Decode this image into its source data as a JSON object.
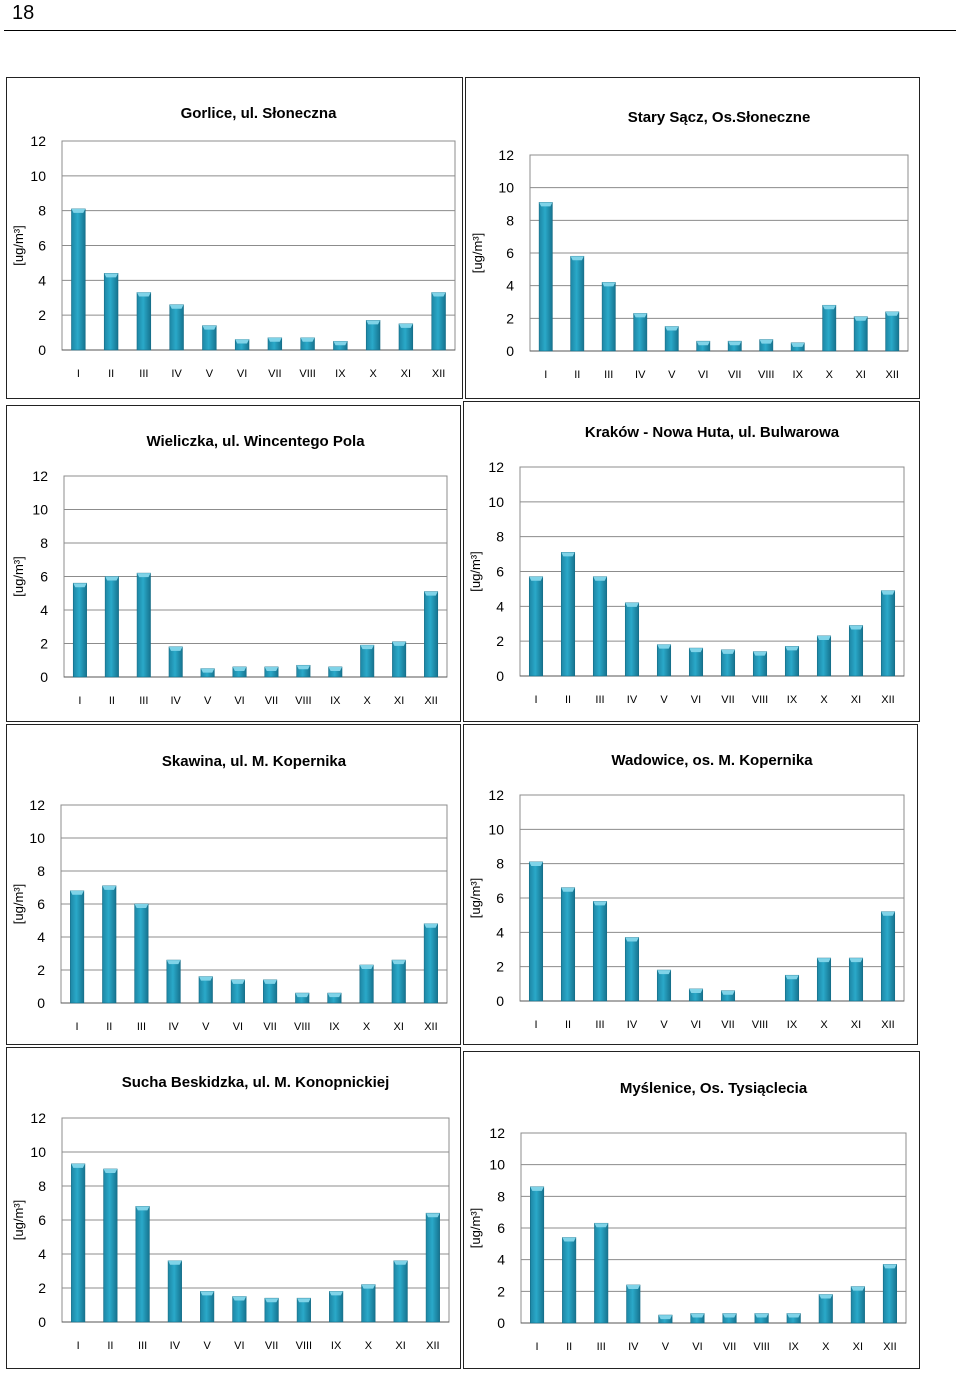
{
  "page": {
    "number": "18"
  },
  "chart_data": [
    {
      "type": "bar",
      "title": "Gorlice, ul. Słoneczna",
      "ylabel": "[ug/m³]",
      "ylim": [
        0,
        12
      ],
      "yticks": [
        "0",
        "2",
        "4",
        "6",
        "8",
        "10",
        "12"
      ],
      "categories": [
        "I",
        "II",
        "III",
        "IV",
        "V",
        "VI",
        "VII",
        "VIII",
        "IX",
        "X",
        "XI",
        "XII"
      ],
      "values": [
        8.1,
        4.4,
        3.3,
        2.6,
        1.4,
        0.6,
        0.7,
        0.7,
        0.5,
        1.7,
        1.5,
        3.3
      ],
      "grid": true,
      "legend": "none",
      "color": "#2aa9c9"
    },
    {
      "type": "bar",
      "title": "Stary Sącz, Os.Słoneczne",
      "ylabel": "[ug/m³]",
      "ylim": [
        0,
        12
      ],
      "yticks": [
        "0",
        "2",
        "4",
        "6",
        "8",
        "10",
        "12"
      ],
      "categories": [
        "I",
        "II",
        "III",
        "IV",
        "V",
        "VI",
        "VII",
        "VIII",
        "IX",
        "X",
        "XI",
        "XII"
      ],
      "values": [
        9.1,
        5.8,
        4.2,
        2.3,
        1.5,
        0.6,
        0.6,
        0.7,
        0.5,
        2.8,
        2.1,
        2.4
      ],
      "grid": true,
      "legend": "none",
      "color": "#2aa9c9"
    },
    {
      "type": "bar",
      "title": "Wieliczka, ul. Wincentego Pola",
      "ylabel": "[ug/m³]",
      "ylim": [
        0,
        12
      ],
      "yticks": [
        "0",
        "2",
        "4",
        "6",
        "8",
        "10",
        "12"
      ],
      "categories": [
        "I",
        "II",
        "III",
        "IV",
        "V",
        "VI",
        "VII",
        "VIII",
        "IX",
        "X",
        "XI",
        "XII"
      ],
      "values": [
        5.6,
        6.0,
        6.2,
        1.8,
        0.5,
        0.6,
        0.6,
        0.7,
        0.6,
        1.9,
        2.1,
        5.1
      ],
      "grid": true,
      "legend": "none",
      "color": "#2aa9c9"
    },
    {
      "type": "bar",
      "title": "Kraków - Nowa Huta, ul. Bulwarowa",
      "ylabel": "[ug/m³]",
      "ylim": [
        0,
        12
      ],
      "yticks": [
        "0",
        "2",
        "4",
        "6",
        "8",
        "10",
        "12"
      ],
      "categories": [
        "I",
        "II",
        "III",
        "IV",
        "V",
        "VI",
        "VII",
        "VIII",
        "IX",
        "X",
        "XI",
        "XII"
      ],
      "values": [
        5.7,
        7.1,
        5.7,
        4.2,
        1.8,
        1.6,
        1.5,
        1.4,
        1.7,
        2.3,
        2.9,
        4.9
      ],
      "grid": true,
      "legend": "none",
      "color": "#2aa9c9"
    },
    {
      "type": "bar",
      "title": "Skawina, ul. M. Kopernika",
      "ylabel": "[ug/m³]",
      "ylim": [
        0,
        12
      ],
      "yticks": [
        "0",
        "2",
        "4",
        "6",
        "8",
        "10",
        "12"
      ],
      "categories": [
        "I",
        "II",
        "III",
        "IV",
        "V",
        "VI",
        "VII",
        "VIII",
        "IX",
        "X",
        "XI",
        "XII"
      ],
      "values": [
        6.8,
        7.1,
        6.0,
        2.6,
        1.6,
        1.4,
        1.4,
        0.6,
        0.6,
        2.3,
        2.6,
        4.8
      ],
      "grid": true,
      "legend": "none",
      "color": "#2aa9c9"
    },
    {
      "type": "bar",
      "title": "Wadowice, os. M. Kopernika",
      "ylabel": "[ug/m³]",
      "ylim": [
        0,
        12
      ],
      "yticks": [
        "0",
        "2",
        "4",
        "6",
        "8",
        "10",
        "12"
      ],
      "categories": [
        "I",
        "II",
        "III",
        "IV",
        "V",
        "VI",
        "VII",
        "VIII",
        "IX",
        "X",
        "XI",
        "XII"
      ],
      "values": [
        8.1,
        6.6,
        5.8,
        3.7,
        1.8,
        0.7,
        0.6,
        null,
        1.5,
        2.5,
        2.5,
        5.2
      ],
      "grid": true,
      "legend": "none",
      "color": "#2aa9c9"
    },
    {
      "type": "bar",
      "title": "Sucha Beskidzka, ul. M. Konopnickiej",
      "ylabel": "[ug/m³]",
      "ylim": [
        0,
        12
      ],
      "yticks": [
        "0",
        "2",
        "4",
        "6",
        "8",
        "10",
        "12"
      ],
      "categories": [
        "I",
        "II",
        "III",
        "IV",
        "V",
        "VI",
        "VII",
        "VIII",
        "IX",
        "X",
        "XI",
        "XII"
      ],
      "values": [
        9.3,
        9.0,
        6.8,
        3.6,
        1.8,
        1.5,
        1.4,
        1.4,
        1.8,
        2.2,
        3.6,
        6.4
      ],
      "grid": true,
      "legend": "none",
      "color": "#2aa9c9"
    },
    {
      "type": "bar",
      "title": "Myślenice, Os. Tysiąclecia",
      "ylabel": "[ug/m³]",
      "ylim": [
        0,
        12
      ],
      "yticks": [
        "0",
        "2",
        "4",
        "6",
        "8",
        "10",
        "12"
      ],
      "categories": [
        "I",
        "II",
        "III",
        "IV",
        "V",
        "VI",
        "VII",
        "VIII",
        "IX",
        "X",
        "XI",
        "XII"
      ],
      "values": [
        8.6,
        5.4,
        6.3,
        2.4,
        0.5,
        0.6,
        0.6,
        0.6,
        0.6,
        1.8,
        2.3,
        3.7
      ],
      "grid": true,
      "legend": "none",
      "color": "#2aa9c9"
    }
  ]
}
